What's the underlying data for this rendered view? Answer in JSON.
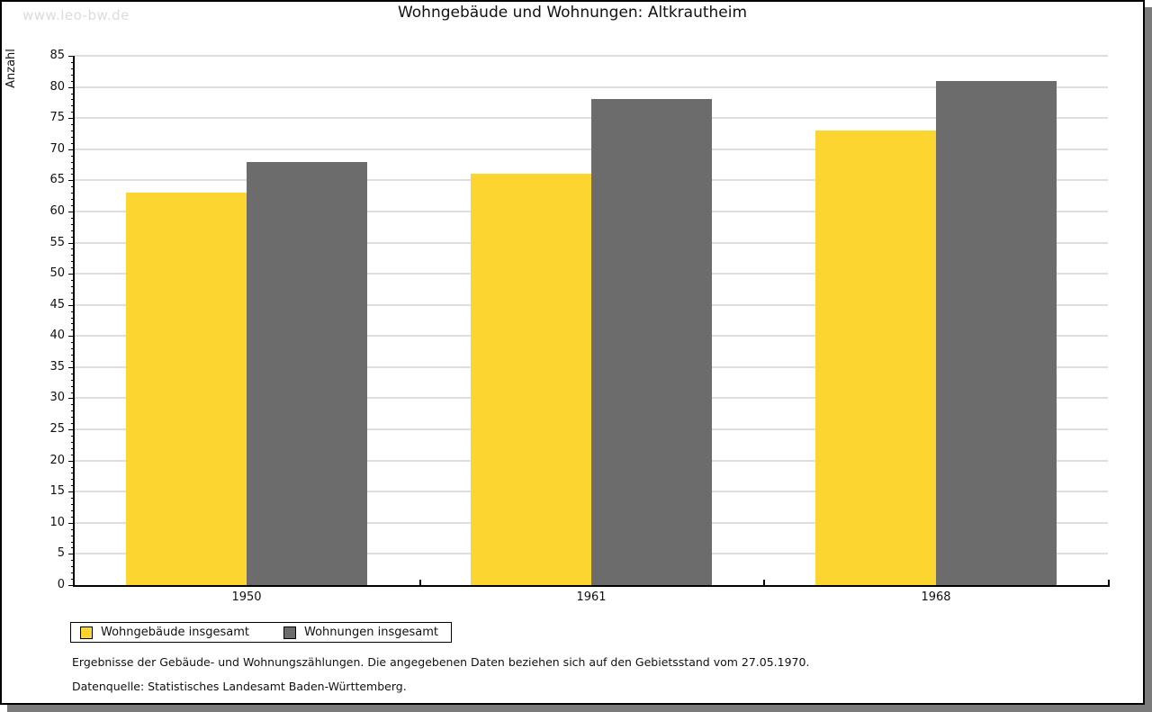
{
  "watermark": "www.leo-bw.de",
  "title": "Wohngebäude und Wohnungen: Altkrautheim",
  "chart_data": {
    "type": "bar",
    "title": "Wohngebäude und Wohnungen: Altkrautheim",
    "xlabel": "",
    "ylabel": "Anzahl",
    "categories": [
      "1950",
      "1961",
      "1968"
    ],
    "series": [
      {
        "name": "Wohngebäude insgesamt",
        "color": "#FCD530",
        "values": [
          63,
          66,
          73
        ]
      },
      {
        "name": "Wohnungen insgesamt",
        "color": "#6C6C6C",
        "values": [
          68,
          78,
          81
        ]
      }
    ],
    "ylim": [
      0,
      85
    ],
    "ytick_major": 5,
    "ytick_minor": 1,
    "grid": true,
    "grid_color": "#dedede",
    "legend_position": "bottom-left"
  },
  "footnotes": [
    "Ergebnisse der Gebäude- und Wohnungszählungen. Die angegebenen Daten beziehen sich auf den Gebietsstand vom 27.05.1970.",
    "Datenquelle: Statistisches Landesamt Baden-Württemberg."
  ],
  "colors": {
    "bar_yellow": "#FCD530",
    "bar_gray": "#6C6C6C",
    "gridline": "#dedede",
    "axis": "#000000",
    "watermark": "#dcdcdc",
    "shadow": "#7b7b7b"
  }
}
